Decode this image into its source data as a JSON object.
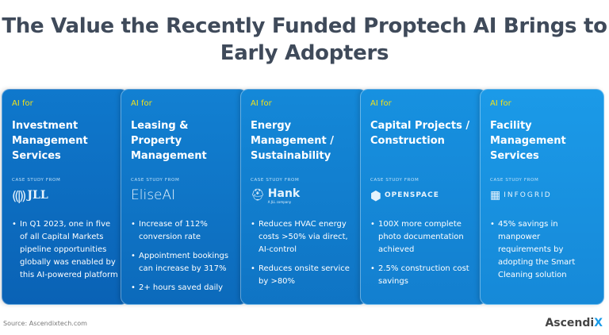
{
  "title": "The Value the Recently Funded Proptech AI Brings to Early Adopters",
  "cards": [
    {
      "label": "AI for",
      "heading": "Investment Management Services",
      "case_study": "CASE STUDY FROM",
      "logo": "JLL",
      "bullets": [
        "In Q1 2023, one in five of all Capital Markets pipeline opportunities globally was enabled by this AI-powered platform"
      ]
    },
    {
      "label": "AI for",
      "heading": "Leasing & Property Management",
      "case_study": "CASE STUDY FROM",
      "logo": "EliseAI",
      "bullets": [
        "Increase of 112% conversion rate",
        "Appointment bookings can increase by 317%",
        "2+ hours saved daily"
      ]
    },
    {
      "label": "AI for",
      "heading": "Energy Management / Sustainability",
      "case_study": "CASE STUDY FROM",
      "logo": "Hank",
      "logo_sub": "A JLL company",
      "bullets": [
        "Reduces HVAC energy costs >50% via direct, AI-control",
        "Reduces onsite service by >80%"
      ]
    },
    {
      "label": "AI for",
      "heading": "Capital Projects / Construction",
      "case_study": "CASE STUDY FROM",
      "logo": "OPENSPACE",
      "bullets": [
        "100X more complete photo documentation achieved",
        "2.5% construction cost savings"
      ]
    },
    {
      "label": "AI for",
      "heading": "Facility Management Services",
      "case_study": "CASE STUDY FROM",
      "logo": "INFOGRID",
      "bullets": [
        "45% savings in manpower requirements by adopting the Smart Cleaning solution"
      ]
    }
  ],
  "source": "Source:  Ascendixtech.com",
  "brand": {
    "main": "Ascendi",
    "accent": "X"
  },
  "colors": {
    "card1": "#0b6ec2",
    "card5": "#1b9ae8",
    "accent": "#f2e21a",
    "title": "#3f4a5a"
  }
}
